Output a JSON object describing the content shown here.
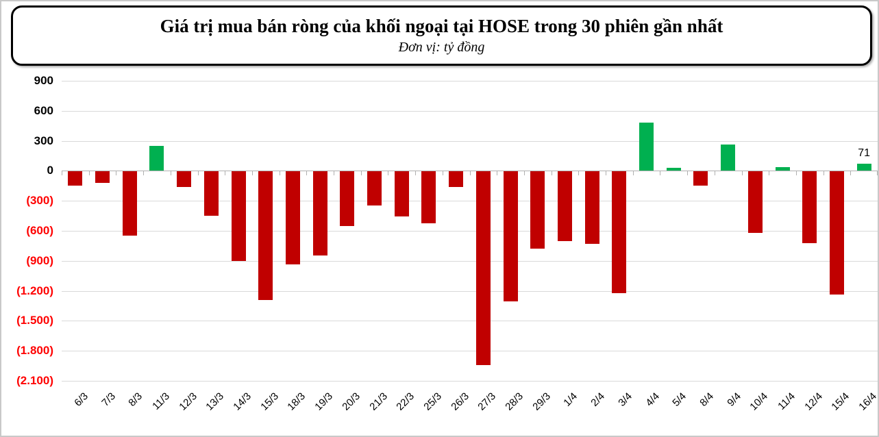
{
  "header": {
    "title": "Giá trị mua bán ròng của khối ngoại tại HOSE trong 30 phiên gần nhất",
    "subtitle": "Đơn vị: tỷ đồng"
  },
  "colors": {
    "positive_bar": "#00B050",
    "negative_bar": "#C00000",
    "negative_tick_label": "#FF0000",
    "positive_tick_label": "#000000",
    "gridline": "#D9D9D9",
    "axis": "#B0B0B0"
  },
  "chart_data": {
    "type": "bar",
    "title": "Giá trị mua bán ròng của khối ngoại tại HOSE trong 30 phiên gần nhất",
    "subtitle": "Đơn vị: tỷ đồng",
    "unit": "tỷ đồng",
    "categories": [
      "6/3",
      "7/3",
      "8/3",
      "11/3",
      "12/3",
      "13/3",
      "14/3",
      "15/3",
      "18/3",
      "19/3",
      "20/3",
      "21/3",
      "22/3",
      "25/3",
      "26/3",
      "27/3",
      "28/3",
      "29/3",
      "1/4",
      "2/4",
      "3/4",
      "4/4",
      "5/4",
      "8/4",
      "9/4",
      "10/4",
      "11/4",
      "12/4",
      "15/4",
      "16/4"
    ],
    "values": [
      -145,
      -120,
      -650,
      250,
      -160,
      -450,
      -900,
      -1290,
      -935,
      -850,
      -555,
      -345,
      -455,
      -525,
      -165,
      -1940,
      -1305,
      -780,
      -705,
      -730,
      -1220,
      480,
      30,
      -150,
      265,
      -620,
      40,
      -720,
      -1235,
      71
    ],
    "data_labels": [
      {
        "category": "16/4",
        "label": "71"
      }
    ],
    "ylim": [
      -2100,
      900
    ],
    "yticks": [
      {
        "value": 900,
        "label": "900"
      },
      {
        "value": 600,
        "label": "600"
      },
      {
        "value": 300,
        "label": "300"
      },
      {
        "value": 0,
        "label": "0"
      },
      {
        "value": -300,
        "label": "(300)"
      },
      {
        "value": -600,
        "label": "(600)"
      },
      {
        "value": -900,
        "label": "(900)"
      },
      {
        "value": -1200,
        "label": "(1.200)"
      },
      {
        "value": -1500,
        "label": "(1.500)"
      },
      {
        "value": -1800,
        "label": "(1.800)"
      },
      {
        "value": -2100,
        "label": "(2.100)"
      }
    ],
    "grid": "horizontal",
    "legend": "none",
    "xlabel": "",
    "ylabel": ""
  }
}
